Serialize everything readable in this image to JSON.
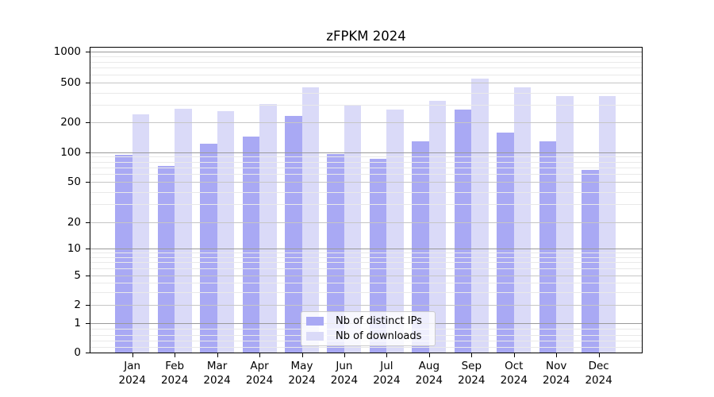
{
  "chart_data": {
    "type": "bar",
    "title": "zFPKM 2024",
    "categories": [
      "Jan",
      "Feb",
      "Mar",
      "Apr",
      "May",
      "Jun",
      "Jul",
      "Aug",
      "Sep",
      "Oct",
      "Nov",
      "Dec"
    ],
    "year_label": "2024",
    "series": [
      {
        "name": "Nb of distinct IPs",
        "color": "#a9a9f4",
        "values": [
          93,
          72,
          122,
          143,
          230,
          95,
          86,
          128,
          270,
          156,
          129,
          66
        ]
      },
      {
        "name": "Nb of downloads",
        "color": "#dadaf8",
        "values": [
          240,
          272,
          260,
          305,
          445,
          300,
          270,
          330,
          550,
          445,
          365,
          365
        ]
      }
    ],
    "yscale": "symlog",
    "y_ticks": [
      0,
      1,
      2,
      5,
      10,
      20,
      50,
      100,
      200,
      500,
      1000
    ],
    "y_minor_ticks": [
      0.2,
      0.4,
      0.6,
      0.8,
      3,
      4,
      6,
      7,
      8,
      9,
      30,
      40,
      60,
      70,
      80,
      90,
      300,
      400,
      600,
      700,
      800,
      900
    ],
    "ylim": [
      0,
      1120
    ],
    "xlabel": "",
    "ylabel": "",
    "grid": true,
    "legend_position": "lower center",
    "colors": {
      "grid_major": "#9a9a9a",
      "grid_mid": "#c6c6c6",
      "grid_minor": "#e9e9e9",
      "spine": "#000000",
      "background": "#ffffff"
    }
  }
}
